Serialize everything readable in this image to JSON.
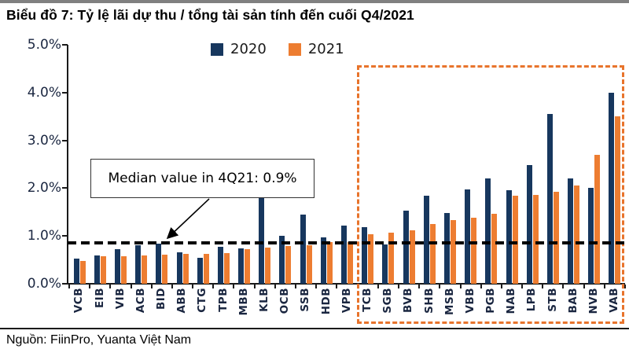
{
  "page": {
    "title": "Biểu đồ 7:  Tỷ lệ lãi dự thu / tổng tài sản tính đến cuối Q4/2021",
    "source": "Nguồn: FiinPro, Yuanta Việt Nam"
  },
  "colors": {
    "navy": "#17375e",
    "orange": "#ed7d31",
    "highlight_border": "#e8742c",
    "topbar_gray": "#808080",
    "axis": "#1a1a1a"
  },
  "chart_data": {
    "type": "bar",
    "title": "Tỷ lệ lãi dự thu / tổng tài sản tính đến cuối Q4/2021",
    "categories": [
      "VCB",
      "EIB",
      "VIB",
      "ACB",
      "BID",
      "ABB",
      "CTG",
      "TPB",
      "MBB",
      "KLB",
      "OCB",
      "SSB",
      "HDB",
      "VPB",
      "TCB",
      "SGB",
      "BVB",
      "SHB",
      "MSB",
      "VBB",
      "PGB",
      "NAB",
      "LPB",
      "STB",
      "BAB",
      "NVB",
      "VAB"
    ],
    "series": [
      {
        "name": "2020",
        "color_key": "navy",
        "values": [
          0.52,
          0.6,
          0.72,
          0.8,
          0.84,
          0.66,
          0.54,
          0.78,
          0.74,
          1.79,
          1.0,
          1.44,
          0.97,
          1.21,
          1.19,
          0.82,
          1.53,
          1.85,
          1.48,
          1.97,
          2.2,
          1.95,
          2.49,
          3.55,
          2.2,
          2.0,
          4.0
        ]
      },
      {
        "name": "2021",
        "color_key": "orange",
        "values": [
          0.48,
          0.57,
          0.58,
          0.59,
          0.61,
          0.63,
          0.62,
          0.64,
          0.73,
          0.76,
          0.79,
          0.8,
          0.87,
          0.87,
          1.04,
          1.07,
          1.12,
          1.25,
          1.34,
          1.38,
          1.46,
          1.84,
          1.86,
          1.92,
          2.05,
          2.7,
          3.5
        ]
      }
    ],
    "ylim": [
      0,
      5
    ],
    "yticks": [
      "0.0%",
      "1.0%",
      "2.0%",
      "3.0%",
      "4.0%",
      "5.0%"
    ],
    "xlabel": "",
    "ylabel": "",
    "grid": false,
    "legend_position": "top-center",
    "median_label": "Median value in 4Q21: 0.9%",
    "median_line_value": 0.85,
    "highlight_box": {
      "from": "TCB",
      "to": "VAB"
    }
  }
}
